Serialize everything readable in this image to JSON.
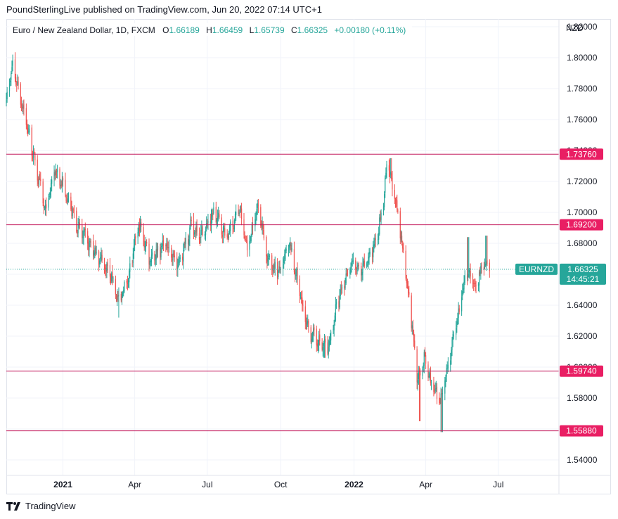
{
  "publisher_line": "PoundSterlingLive published on TradingView.com, Jun 20, 2022 07:14 UTC+1",
  "footer": {
    "brand": "TradingView",
    "logo_icon": "tradingview-logo-icon"
  },
  "legend": {
    "symbol": "Euro / New Zealand Dollar, 1D, FXCM",
    "o_label": "O",
    "o": "1.66189",
    "h_label": "H",
    "h": "1.66459",
    "l_label": "L",
    "l": "1.65739",
    "c_label": "C",
    "c": "1.66325",
    "change": "+0.00180 (+0.11%)"
  },
  "colors": {
    "up": "#26a69a",
    "down": "#ef5350",
    "level_line": "#c2185b",
    "level_label_bg": "#e91e63",
    "last_price_bg": "#26a69a",
    "grid": "#f0f3fa",
    "text": "#131722"
  },
  "chart_data": {
    "type": "candlestick",
    "currency_label": "NZD",
    "ylim": [
      1.53,
      1.825
    ],
    "y_ticks": [
      "1.54000",
      "1.56000",
      "1.58000",
      "1.60000",
      "1.62000",
      "1.64000",
      "1.66000",
      "1.68000",
      "1.70000",
      "1.72000",
      "1.74000",
      "1.76000",
      "1.78000",
      "1.80000",
      "1.82000"
    ],
    "x_start": "2020-10-22",
    "x_end": "2022-09-15",
    "x_ticks": [
      {
        "label": "2021",
        "date": "2021-01-01",
        "bold": true
      },
      {
        "label": "Apr",
        "date": "2021-04-01",
        "bold": false
      },
      {
        "label": "Jul",
        "date": "2021-07-01",
        "bold": false
      },
      {
        "label": "Oct",
        "date": "2021-10-01",
        "bold": false
      },
      {
        "label": "2022",
        "date": "2022-01-01",
        "bold": true
      },
      {
        "label": "Apr",
        "date": "2022-04-01",
        "bold": false
      },
      {
        "label": "Jul",
        "date": "2022-07-01",
        "bold": false
      }
    ],
    "horizontal_levels": [
      {
        "value": 1.7376,
        "label": "1.73760"
      },
      {
        "value": 1.692,
        "label": "1.69200"
      },
      {
        "value": 1.5974,
        "label": "1.59740"
      },
      {
        "value": 1.5588,
        "label": "1.55880"
      }
    ],
    "last_price": {
      "value": 1.66325,
      "label": "1.66325",
      "symbol": "EURNZD",
      "countdown": "14:45:21"
    },
    "anchors": [
      [
        "2020-10-22",
        1.774
      ],
      [
        "2020-10-30",
        1.795
      ],
      [
        "2020-11-12",
        1.768
      ],
      [
        "2020-11-30",
        1.725
      ],
      [
        "2020-12-10",
        1.7
      ],
      [
        "2020-12-22",
        1.728
      ],
      [
        "2021-01-05",
        1.712
      ],
      [
        "2021-01-20",
        1.69
      ],
      [
        "2021-02-05",
        1.678
      ],
      [
        "2021-02-20",
        1.668
      ],
      [
        "2021-03-05",
        1.656
      ],
      [
        "2021-03-12",
        1.641
      ],
      [
        "2021-03-25",
        1.66
      ],
      [
        "2021-04-06",
        1.692
      ],
      [
        "2021-04-20",
        1.67
      ],
      [
        "2021-05-10",
        1.68
      ],
      [
        "2021-05-25",
        1.665
      ],
      [
        "2021-06-10",
        1.69
      ],
      [
        "2021-06-25",
        1.686
      ],
      [
        "2021-07-10",
        1.7
      ],
      [
        "2021-07-25",
        1.683
      ],
      [
        "2021-08-10",
        1.702
      ],
      [
        "2021-08-20",
        1.676
      ],
      [
        "2021-09-03",
        1.705
      ],
      [
        "2021-09-15",
        1.668
      ],
      [
        "2021-09-30",
        1.661
      ],
      [
        "2021-10-12",
        1.679
      ],
      [
        "2021-10-22",
        1.655
      ],
      [
        "2021-11-03",
        1.625
      ],
      [
        "2021-11-18",
        1.615
      ],
      [
        "2021-11-30",
        1.612
      ],
      [
        "2021-12-10",
        1.638
      ],
      [
        "2021-12-28",
        1.667
      ],
      [
        "2022-01-10",
        1.66
      ],
      [
        "2022-01-25",
        1.676
      ],
      [
        "2022-02-05",
        1.698
      ],
      [
        "2022-02-12",
        1.732
      ],
      [
        "2022-02-22",
        1.706
      ],
      [
        "2022-03-05",
        1.67
      ],
      [
        "2022-03-15",
        1.625
      ],
      [
        "2022-03-22",
        1.59
      ],
      [
        "2022-03-30",
        1.605
      ],
      [
        "2022-04-08",
        1.588
      ],
      [
        "2022-04-18",
        1.576
      ],
      [
        "2022-04-27",
        1.596
      ],
      [
        "2022-05-10",
        1.628
      ],
      [
        "2022-05-22",
        1.662
      ],
      [
        "2022-06-02",
        1.65
      ],
      [
        "2022-06-10",
        1.664
      ],
      [
        "2022-06-20",
        1.663
      ]
    ],
    "extremes": [
      [
        "2020-10-31",
        1.802,
        "high"
      ],
      [
        "2021-03-13",
        1.632,
        "low"
      ],
      [
        "2021-11-25",
        1.606,
        "low"
      ],
      [
        "2022-02-16",
        1.735,
        "high"
      ],
      [
        "2022-03-25",
        1.565,
        "low"
      ],
      [
        "2022-04-21",
        1.558,
        "low"
      ],
      [
        "2022-05-24",
        1.684,
        "high"
      ],
      [
        "2022-06-16",
        1.685,
        "high"
      ]
    ]
  }
}
